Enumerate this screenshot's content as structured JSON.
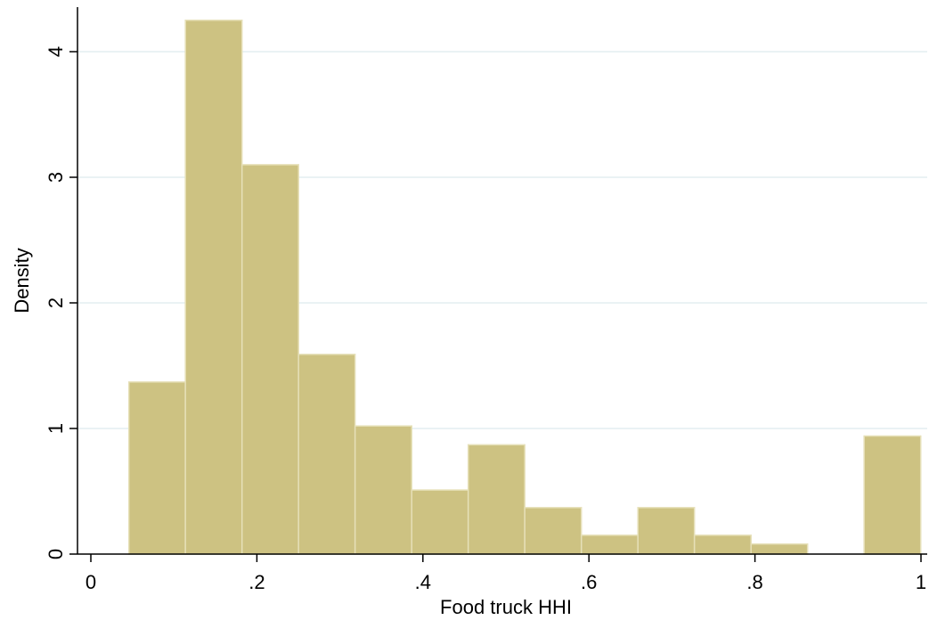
{
  "chart_data": {
    "type": "bar",
    "subtype": "histogram",
    "xlabel": "Food truck HHI",
    "ylabel": "Density",
    "xlim": [
      0,
      1
    ],
    "ylim": [
      0,
      4.3
    ],
    "x_ticks": [
      {
        "value": 0,
        "label": "0"
      },
      {
        "value": 0.2,
        "label": ".2"
      },
      {
        "value": 0.4,
        "label": ".4"
      },
      {
        "value": 0.6,
        "label": ".6"
      },
      {
        "value": 0.8,
        "label": ".8"
      },
      {
        "value": 1,
        "label": "1"
      }
    ],
    "y_ticks": [
      {
        "value": 0,
        "label": "0"
      },
      {
        "value": 1,
        "label": "1"
      },
      {
        "value": 2,
        "label": "2"
      },
      {
        "value": 3,
        "label": "3"
      },
      {
        "value": 4,
        "label": "4"
      }
    ],
    "bins": [
      {
        "start": 0.0458,
        "end": 0.1139,
        "density": 1.37
      },
      {
        "start": 0.1139,
        "end": 0.1821,
        "density": 4.25
      },
      {
        "start": 0.1821,
        "end": 0.2502,
        "density": 3.1
      },
      {
        "start": 0.2502,
        "end": 0.3183,
        "density": 1.59
      },
      {
        "start": 0.3183,
        "end": 0.3865,
        "density": 1.02
      },
      {
        "start": 0.3865,
        "end": 0.4546,
        "density": 0.51
      },
      {
        "start": 0.4546,
        "end": 0.5227,
        "density": 0.87
      },
      {
        "start": 0.5227,
        "end": 0.5909,
        "density": 0.37
      },
      {
        "start": 0.5909,
        "end": 0.659,
        "density": 0.15
      },
      {
        "start": 0.659,
        "end": 0.7271,
        "density": 0.37
      },
      {
        "start": 0.7271,
        "end": 0.7953,
        "density": 0.15
      },
      {
        "start": 0.7953,
        "end": 0.8634,
        "density": 0.08
      },
      {
        "start": 0.8634,
        "end": 0.9315,
        "density": 0.0
      },
      {
        "start": 0.9315,
        "end": 0.9997,
        "density": 0.94
      }
    ],
    "grid": "horizontal",
    "colors": {
      "bar_fill": "#cdc282",
      "bar_edge": "#e6e0b8",
      "grid": "#e4eef0",
      "axis": "#000000"
    }
  }
}
